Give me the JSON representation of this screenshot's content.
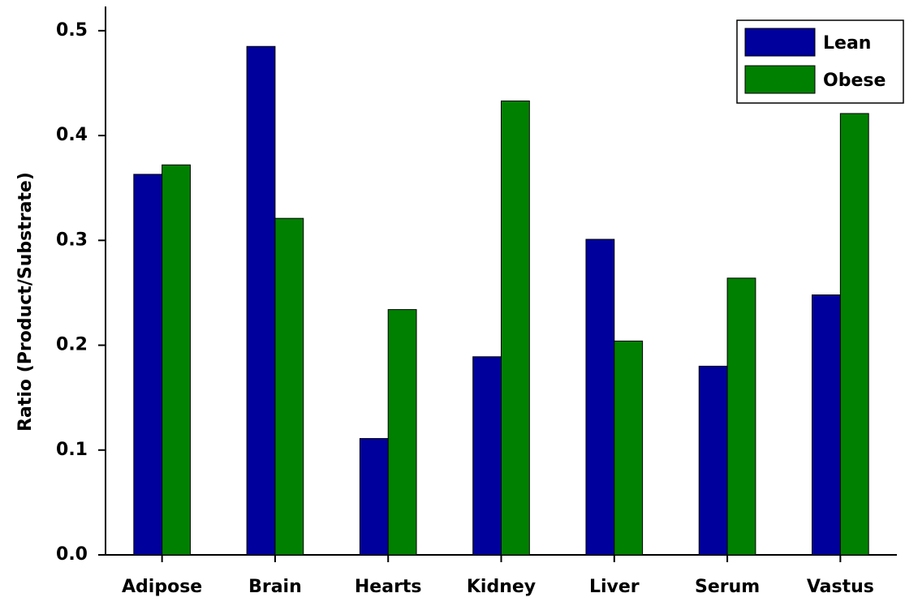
{
  "chart_data": {
    "type": "bar",
    "y_label": "Ratio (Product/Substrate)",
    "categories": [
      "Adipose",
      "Brain",
      "Hearts",
      "Kidney",
      "Liver",
      "Serum",
      "Vastus"
    ],
    "series": [
      {
        "name": "Lean",
        "color": "#00009c",
        "values": [
          0.363,
          0.485,
          0.111,
          0.189,
          0.301,
          0.18,
          0.248
        ]
      },
      {
        "name": "Obese",
        "color": "#008000",
        "values": [
          0.372,
          0.321,
          0.234,
          0.433,
          0.204,
          0.264,
          0.421
        ]
      }
    ],
    "ylim": [
      0,
      0.52
    ],
    "yticks": [
      {
        "value": 0,
        "label": "0.0"
      },
      0.1,
      0.2,
      0.3,
      0.4,
      0.5
    ],
    "legend": "top-right"
  }
}
